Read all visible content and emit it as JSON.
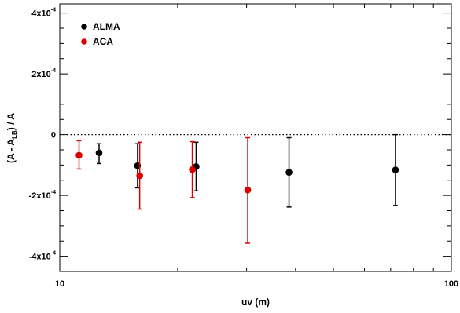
{
  "chart_data": {
    "type": "scatter",
    "title": "",
    "xlabel": "uv (m)",
    "ylabel": "(A - A",
    "ylabel_sub": "LB",
    "ylabel_tail": ") / A",
    "xscale": "log",
    "xlim": [
      10,
      100
    ],
    "ylim": [
      -0.00045,
      0.00043
    ],
    "grid": false,
    "legend_position": "top-left",
    "reference_line": {
      "y": 0,
      "style": "dotted"
    },
    "x_ticks": [
      {
        "value": 10,
        "label": "10"
      },
      {
        "value": 100,
        "label": "100"
      }
    ],
    "y_ticks": [
      {
        "value": -0.0004,
        "base": "-4x10",
        "exp": "-4"
      },
      {
        "value": -0.0002,
        "base": "-2x10",
        "exp": "-4"
      },
      {
        "value": 0,
        "base": "0",
        "exp": ""
      },
      {
        "value": 0.0002,
        "base": "2x10",
        "exp": "-4"
      },
      {
        "value": 0.0004,
        "base": "4x10",
        "exp": "-4"
      }
    ],
    "series": [
      {
        "name": "ALMA",
        "color": "#000000",
        "points": [
          {
            "x": 12.6,
            "y": -6e-05,
            "low": -9.5e-05,
            "high": -3e-05
          },
          {
            "x": 15.8,
            "y": -0.000102,
            "low": -0.000175,
            "high": -3e-05
          },
          {
            "x": 22.3,
            "y": -0.000105,
            "low": -0.000185,
            "high": -2.5e-05
          },
          {
            "x": 38.5,
            "y": -0.000124,
            "low": -0.000238,
            "high": -1e-05
          },
          {
            "x": 72.0,
            "y": -0.000116,
            "low": -0.000233,
            "high": 0.0
          }
        ]
      },
      {
        "name": "ACA",
        "color": "#dd0000",
        "points": [
          {
            "x": 11.2,
            "y": -6.8e-05,
            "low": -0.000113,
            "high": -2e-05
          },
          {
            "x": 16.0,
            "y": -0.000135,
            "low": -0.000245,
            "high": -2.5e-05
          },
          {
            "x": 21.8,
            "y": -0.000115,
            "low": -0.000207,
            "high": -2.3e-05
          },
          {
            "x": 30.2,
            "y": -0.000182,
            "low": -0.000357,
            "high": -1e-05
          }
        ]
      }
    ]
  }
}
